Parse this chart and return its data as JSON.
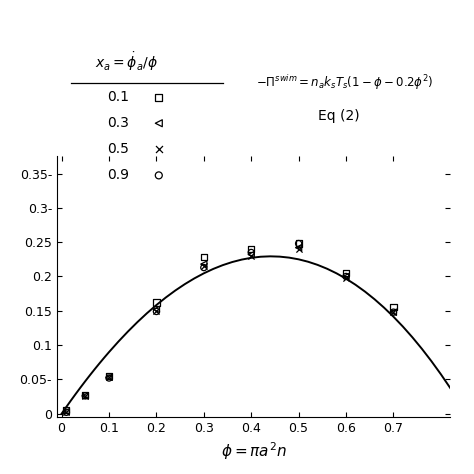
{
  "xlabel": "$\\phi = \\pi a^2 n$",
  "xlim": [
    -0.01,
    0.82
  ],
  "ylim": [
    -0.005,
    0.375
  ],
  "xticks": [
    0,
    0.1,
    0.2,
    0.3,
    0.4,
    0.5,
    0.6,
    0.7
  ],
  "yticks": [
    0,
    0.05,
    0.1,
    0.15,
    0.2,
    0.25,
    0.3,
    0.35
  ],
  "ytick_labels": [
    "0",
    "0.05-",
    "0.1",
    "0.15",
    "0.2",
    "0.25",
    "0.3-",
    "0.35-"
  ],
  "phi_curve": [
    0.0,
    0.01,
    0.02,
    0.03,
    0.04,
    0.05,
    0.06,
    0.07,
    0.08,
    0.09,
    0.1,
    0.12,
    0.14,
    0.16,
    0.18,
    0.2,
    0.22,
    0.24,
    0.26,
    0.28,
    0.3,
    0.32,
    0.34,
    0.36,
    0.38,
    0.4,
    0.42,
    0.44,
    0.46,
    0.48,
    0.5,
    0.52,
    0.54,
    0.56,
    0.58,
    0.6,
    0.62,
    0.64,
    0.66,
    0.68,
    0.7,
    0.72,
    0.74,
    0.76,
    0.78,
    0.8,
    0.82
  ],
  "data_phi_01": [
    0.01,
    0.05,
    0.1,
    0.2,
    0.3,
    0.4,
    0.5,
    0.6,
    0.7
  ],
  "data_y_01": [
    0.005,
    0.027,
    0.055,
    0.162,
    0.228,
    0.24,
    0.248,
    0.205,
    0.155
  ],
  "data_phi_03": [
    0.01,
    0.05,
    0.1,
    0.2,
    0.3,
    0.4,
    0.5,
    0.6,
    0.7
  ],
  "data_y_03": [
    0.003,
    0.026,
    0.053,
    0.152,
    0.218,
    0.232,
    0.242,
    0.2,
    0.148
  ],
  "data_phi_05": [
    0.01,
    0.05,
    0.1,
    0.2,
    0.3,
    0.4,
    0.5,
    0.6,
    0.7
  ],
  "data_y_05": [
    0.002,
    0.026,
    0.053,
    0.15,
    0.215,
    0.23,
    0.24,
    0.198,
    0.148
  ],
  "data_phi_09": [
    0.01,
    0.05,
    0.1,
    0.2,
    0.3,
    0.4,
    0.5,
    0.6,
    0.7
  ],
  "data_y_09": [
    0.002,
    0.026,
    0.052,
    0.149,
    0.213,
    0.235,
    0.248,
    0.2,
    0.148
  ],
  "bg_color": "#ffffff",
  "line_color": "#000000",
  "linewidth": 1.4,
  "marker_size": 6,
  "fontsize_tick": 9,
  "fontsize_label": 11,
  "fontsize_legend": 10,
  "fontsize_eq": 10
}
